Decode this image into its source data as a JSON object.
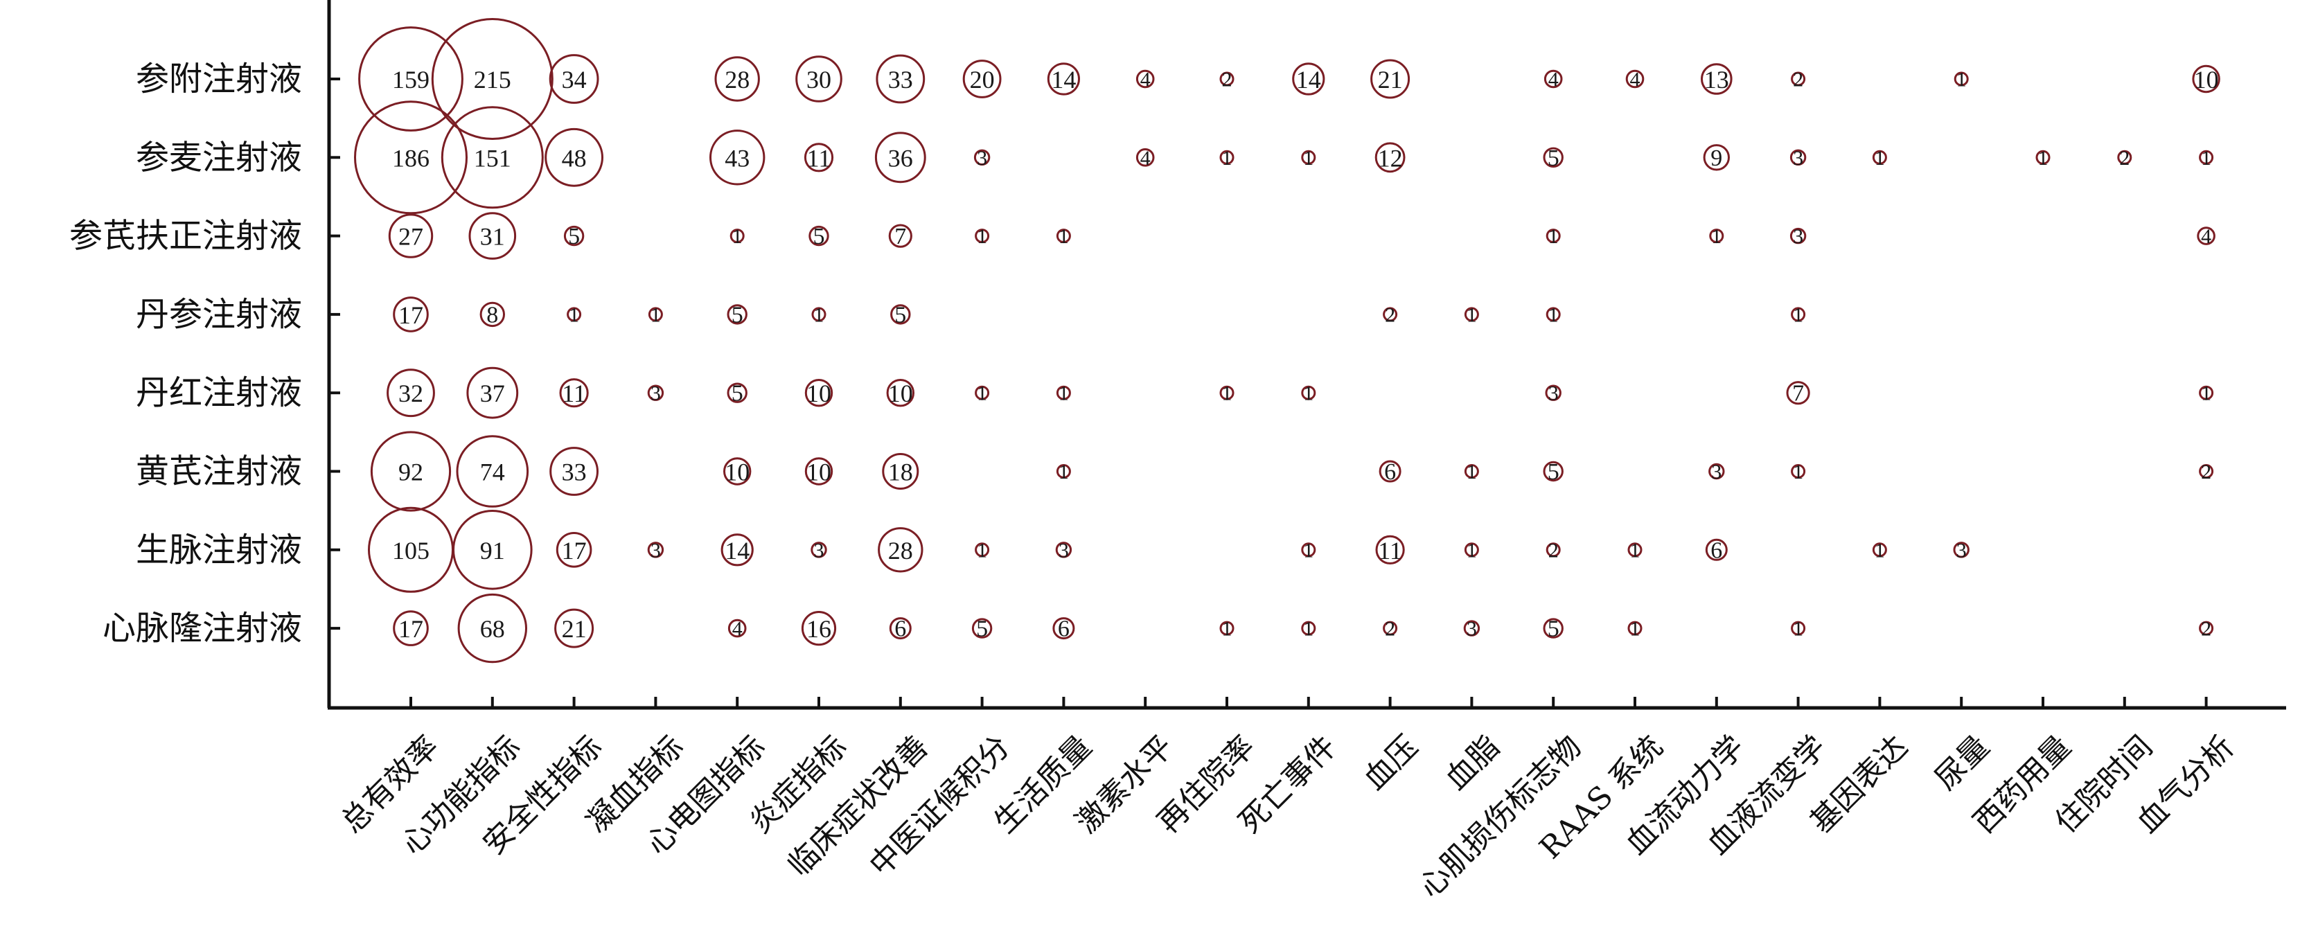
{
  "chart_data": {
    "type": "bubble",
    "colors": {
      "bubble": "#7b1e24",
      "axis": "#111111",
      "text": "#111111"
    },
    "x_categories": [
      "总有效率",
      "心功能指标",
      "安全性指标",
      "凝血指标",
      "心电图指标",
      "炎症指标",
      "临床症状改善",
      "中医证候积分",
      "生活质量",
      "激素水平",
      "再住院率",
      "死亡事件",
      "血压",
      "血脂",
      "心肌损伤标志物",
      "RAAS 系统",
      "血流动力学",
      "血液流变学",
      "基因表达",
      "尿量",
      "西药用量",
      "住院时间",
      "血气分析"
    ],
    "y_categories": [
      "参附注射液",
      "参麦注射液",
      "参芪扶正注射液",
      "丹参注射液",
      "丹红注射液",
      "黄芪注射液",
      "生脉注射液",
      "心脉隆注射液"
    ],
    "values": [
      [
        159,
        215,
        34,
        null,
        28,
        30,
        33,
        20,
        14,
        4,
        2,
        14,
        21,
        null,
        4,
        4,
        13,
        2,
        null,
        1,
        null,
        null,
        10
      ],
      [
        186,
        151,
        48,
        null,
        43,
        11,
        36,
        3,
        null,
        4,
        1,
        1,
        12,
        null,
        5,
        null,
        9,
        3,
        1,
        null,
        1,
        2,
        1
      ],
      [
        27,
        31,
        5,
        null,
        1,
        5,
        7,
        1,
        1,
        null,
        null,
        null,
        null,
        null,
        1,
        null,
        1,
        3,
        null,
        null,
        null,
        null,
        4
      ],
      [
        17,
        8,
        1,
        1,
        5,
        1,
        5,
        null,
        null,
        null,
        null,
        null,
        2,
        1,
        1,
        null,
        null,
        1,
        null,
        null,
        null,
        null,
        null
      ],
      [
        32,
        37,
        11,
        3,
        5,
        10,
        10,
        1,
        1,
        null,
        1,
        1,
        null,
        null,
        3,
        null,
        null,
        7,
        null,
        null,
        null,
        null,
        1
      ],
      [
        92,
        74,
        33,
        null,
        10,
        10,
        18,
        null,
        1,
        null,
        null,
        null,
        6,
        1,
        5,
        null,
        3,
        1,
        null,
        null,
        null,
        null,
        2
      ],
      [
        105,
        91,
        17,
        3,
        14,
        3,
        28,
        1,
        3,
        null,
        null,
        1,
        11,
        1,
        2,
        1,
        6,
        null,
        1,
        3,
        null,
        null,
        null
      ],
      [
        17,
        68,
        21,
        null,
        4,
        16,
        6,
        5,
        6,
        null,
        1,
        1,
        2,
        3,
        5,
        1,
        null,
        1,
        null,
        null,
        null,
        null,
        2
      ]
    ]
  }
}
